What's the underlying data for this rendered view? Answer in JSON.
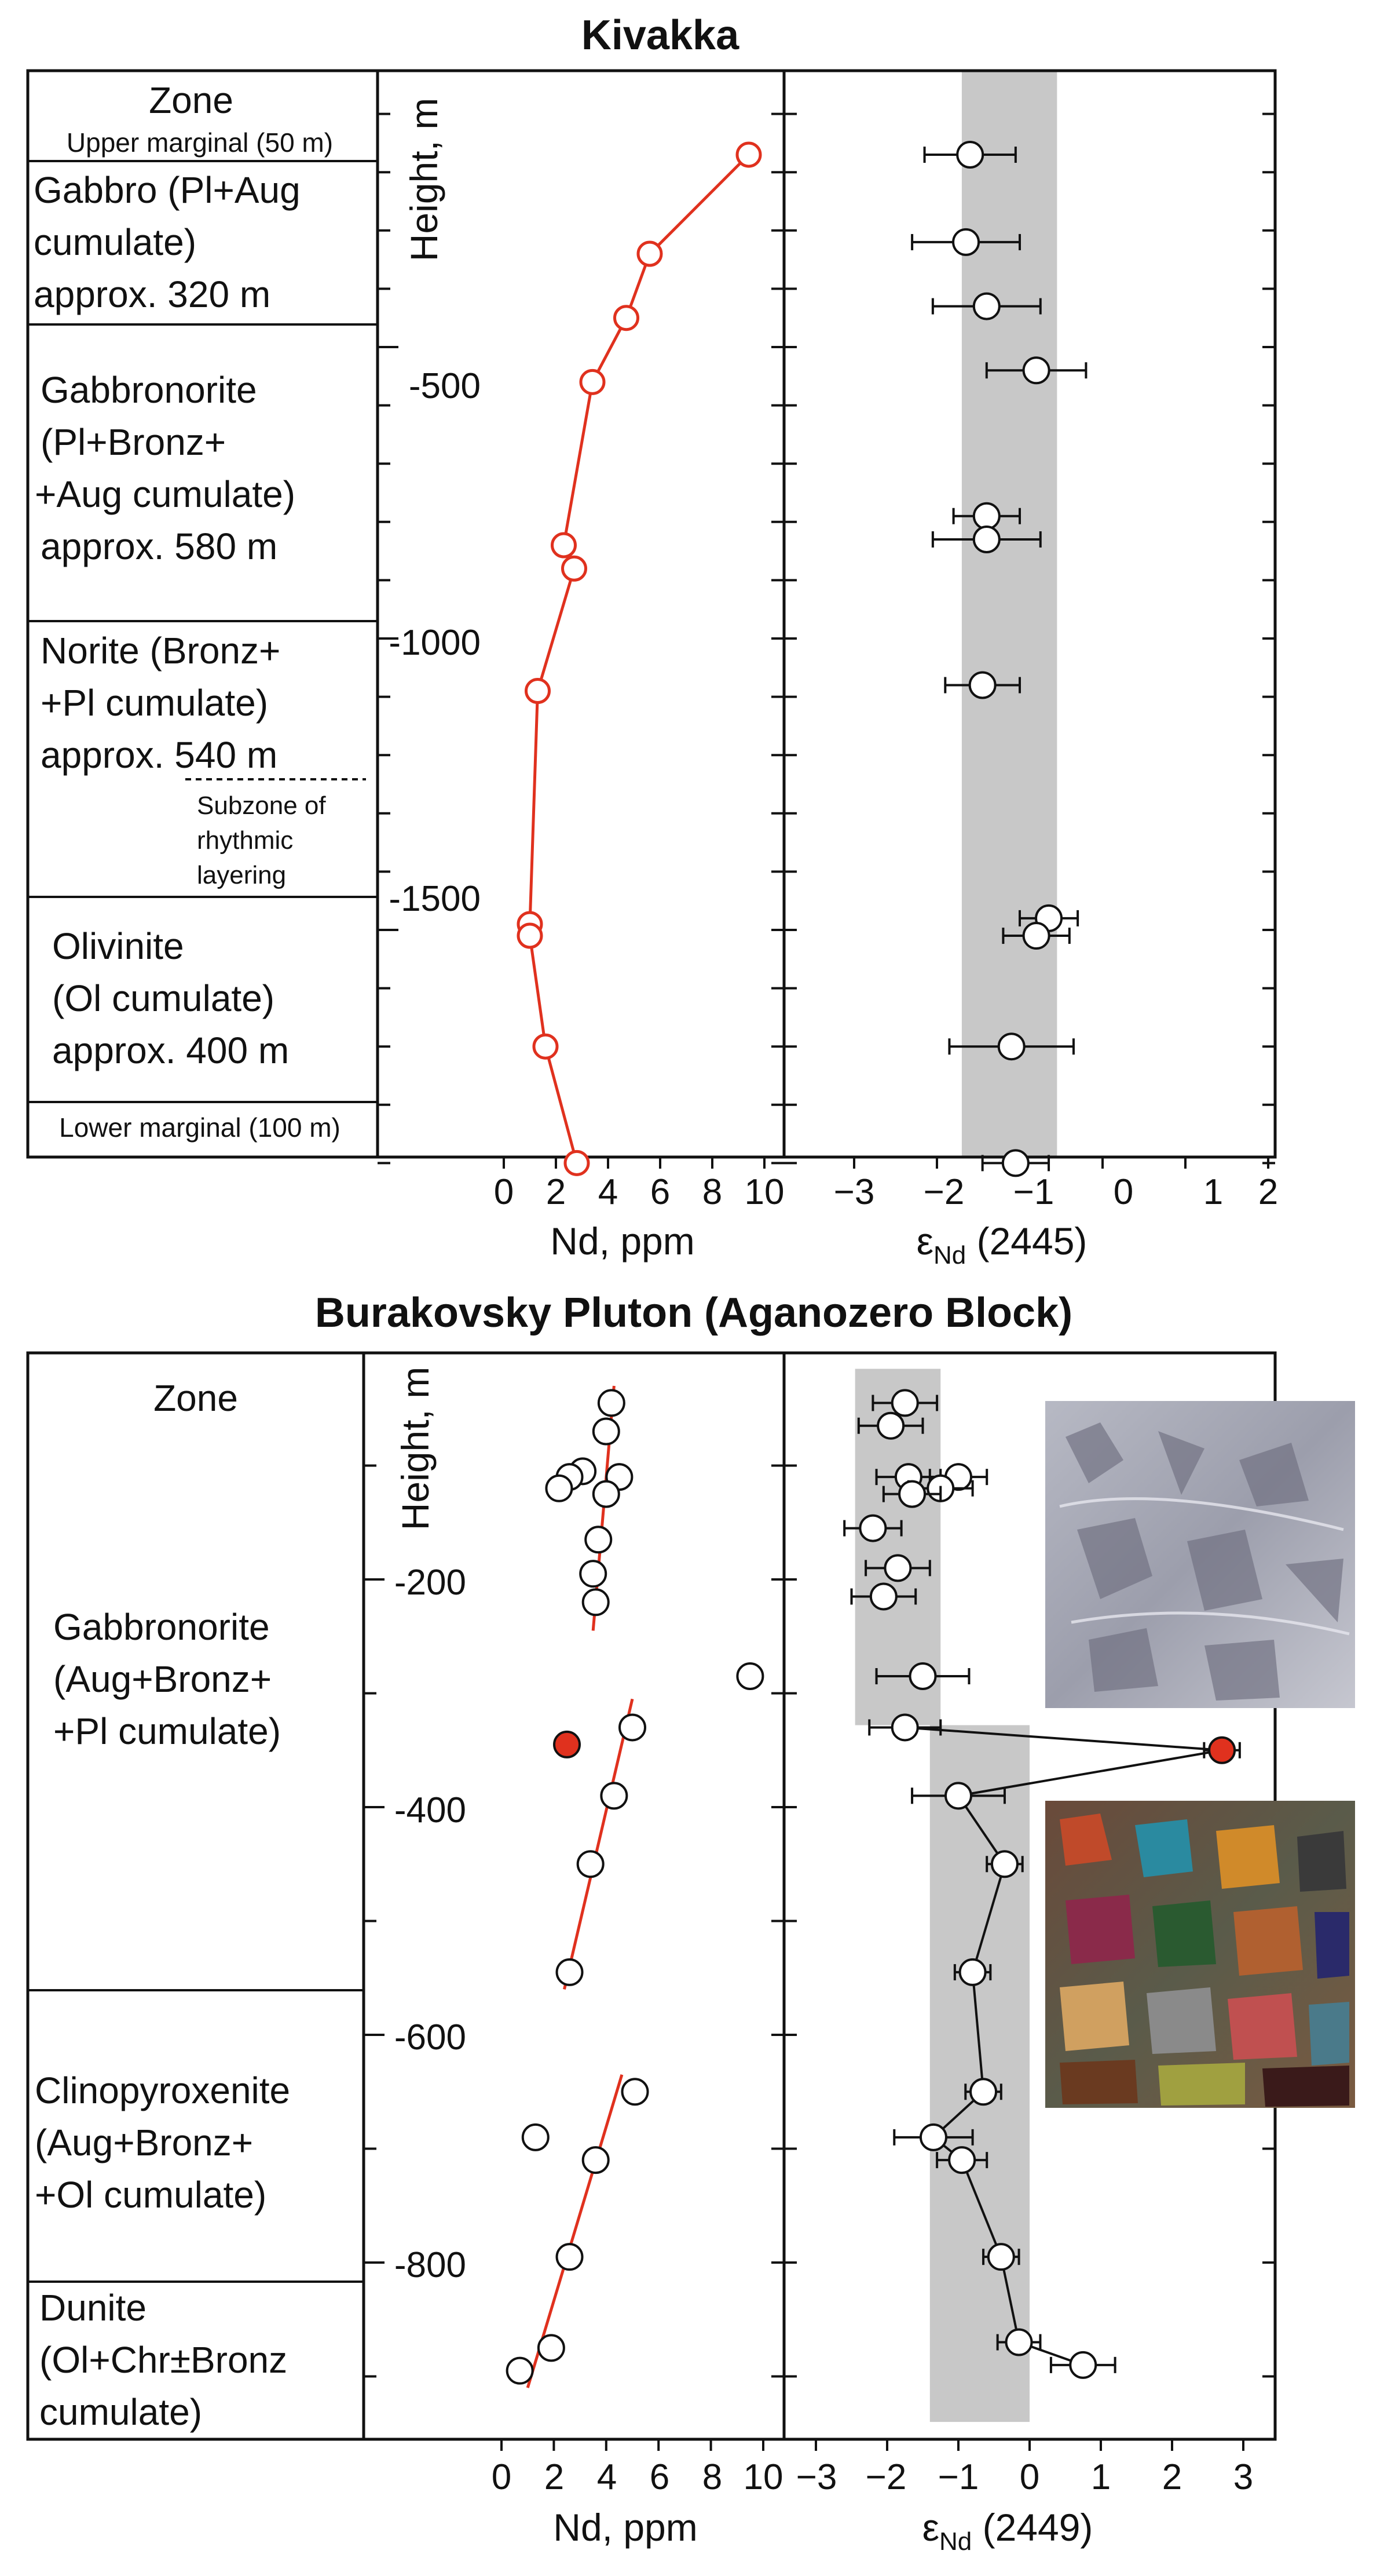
{
  "charts": [
    {
      "title": "Kivakka",
      "zone_header": "Zone",
      "y_axis_label": "Height, m",
      "zones": [
        {
          "lines": [
            "Upper marginal (50 m)"
          ]
        },
        {
          "lines": [
            "Gabbro (Pl+Aug",
            "cumulate)",
            "approx. 320 m"
          ]
        },
        {
          "lines": [
            "Gabbronorite",
            "(Pl+Bronz+",
            "+Aug cumulate)",
            "approx. 580 m"
          ]
        },
        {
          "lines": [
            "Norite (Bronz+",
            "+Pl cumulate)",
            "approx. 540 m"
          ]
        },
        {
          "lines": [
            "Olivinite",
            "(Ol cumulate)",
            "approx. 400 m"
          ]
        },
        {
          "lines": [
            "Lower marginal (100 m)"
          ]
        }
      ],
      "subzone_lines": [
        "Subzone of",
        "rhythmic",
        "layering"
      ],
      "y_ticks": [
        "-500",
        "-1000",
        "-1500"
      ],
      "nd_axis": {
        "label": "Nd, ppm",
        "ticks": [
          "0",
          "2",
          "4",
          "6",
          "8",
          "10"
        ]
      },
      "eps_axis": {
        "label_main": "ε",
        "label_sub": "Nd",
        "label_tail": " (2445)",
        "ticks": [
          "−3",
          "−2",
          "−1",
          "0",
          "1",
          "2"
        ]
      }
    },
    {
      "title": "Burakovsky Pluton (Aganozero Block)",
      "zone_header": "Zone",
      "y_axis_label": "Height, m",
      "zones": [
        {
          "lines": [
            "Gabbronorite",
            "(Aug+Bronz+",
            "+Pl cumulate)"
          ]
        },
        {
          "lines": [
            "Clinopyroxenite",
            "(Aug+Bronz+",
            "+Ol cumulate)"
          ]
        },
        {
          "lines": [
            "Dunite",
            "(Ol+Chr±Bronz",
            "cumulate)"
          ]
        }
      ],
      "y_ticks": [
        "-200",
        "-400",
        "-600",
        "-800"
      ],
      "nd_axis": {
        "label": "Nd, ppm",
        "ticks": [
          "0",
          "2",
          "4",
          "6",
          "8",
          "10"
        ]
      },
      "eps_axis": {
        "label_main": "ε",
        "label_sub": "Nd",
        "label_tail": " (2449)",
        "ticks": [
          "−3",
          "−2",
          "−1",
          "0",
          "1",
          "2",
          "3"
        ]
      }
    }
  ],
  "chart_data": [
    {
      "type": "scatter",
      "title": "Kivakka",
      "ylabel": "Height, m",
      "ylim": [
        -1950,
        -20
      ],
      "nd": {
        "xlabel": "Nd, ppm",
        "xlim": [
          0,
          10
        ],
        "connected": true,
        "points": [
          {
            "nd": 9.4,
            "h": -170
          },
          {
            "nd": 5.6,
            "h": -340
          },
          {
            "nd": 4.7,
            "h": -450
          },
          {
            "nd": 3.4,
            "h": -560
          },
          {
            "nd": 2.3,
            "h": -840
          },
          {
            "nd": 2.7,
            "h": -880
          },
          {
            "nd": 1.3,
            "h": -1090
          },
          {
            "nd": 1.0,
            "h": -1490
          },
          {
            "nd": 1.0,
            "h": -1510
          },
          {
            "nd": 1.6,
            "h": -1700
          },
          {
            "nd": 2.8,
            "h": -1900
          }
        ]
      },
      "eps": {
        "xlabel": "εNd (2445)",
        "xlim": [
          -3,
          2
        ],
        "band": [
          -1.7,
          -0.55
        ],
        "points": [
          {
            "e": -1.6,
            "h": -170,
            "err": 0.55
          },
          {
            "e": -1.65,
            "h": -320,
            "err": 0.65
          },
          {
            "e": -1.4,
            "h": -430,
            "err": 0.65
          },
          {
            "e": -0.8,
            "h": -540,
            "err": 0.6
          },
          {
            "e": -1.4,
            "h": -790,
            "err": 0.4
          },
          {
            "e": -1.4,
            "h": -830,
            "err": 0.65
          },
          {
            "e": -1.45,
            "h": -1080,
            "err": 0.45
          },
          {
            "e": -0.65,
            "h": -1480,
            "err": 0.35
          },
          {
            "e": -0.8,
            "h": -1510,
            "err": 0.4
          },
          {
            "e": -1.1,
            "h": -1700,
            "err": 0.75
          },
          {
            "e": -1.05,
            "h": -1900,
            "err": 0.4
          }
        ]
      }
    },
    {
      "type": "scatter",
      "title": "Burakovsky Pluton (Aganozero Block)",
      "ylabel": "Height, m",
      "ylim": [
        -940,
        -15
      ],
      "nd": {
        "xlabel": "Nd, ppm",
        "xlim": [
          0,
          10
        ],
        "points": [
          {
            "nd": 4.2,
            "h": -45,
            "fill": "white"
          },
          {
            "nd": 4.0,
            "h": -70,
            "fill": "white"
          },
          {
            "nd": 3.1,
            "h": -105,
            "fill": "white"
          },
          {
            "nd": 2.6,
            "h": -110,
            "fill": "white"
          },
          {
            "nd": 4.5,
            "h": -110,
            "fill": "white"
          },
          {
            "nd": 2.2,
            "h": -120,
            "fill": "white"
          },
          {
            "nd": 4.0,
            "h": -125,
            "fill": "white"
          },
          {
            "nd": 3.7,
            "h": -165,
            "fill": "white"
          },
          {
            "nd": 3.5,
            "h": -195,
            "fill": "white"
          },
          {
            "nd": 3.6,
            "h": -220,
            "fill": "white"
          },
          {
            "nd": 9.5,
            "h": -285,
            "fill": "white"
          },
          {
            "nd": 5.0,
            "h": -330,
            "fill": "white"
          },
          {
            "nd": 2.5,
            "h": -345,
            "fill": "red"
          },
          {
            "nd": 4.3,
            "h": -390,
            "fill": "white"
          },
          {
            "nd": 3.4,
            "h": -450,
            "fill": "white"
          },
          {
            "nd": 2.6,
            "h": -545,
            "fill": "white"
          },
          {
            "nd": 5.1,
            "h": -650,
            "fill": "white"
          },
          {
            "nd": 1.3,
            "h": -690,
            "fill": "white"
          },
          {
            "nd": 3.6,
            "h": -710,
            "fill": "white"
          },
          {
            "nd": 2.6,
            "h": -795,
            "fill": "white"
          },
          {
            "nd": 1.9,
            "h": -875,
            "fill": "white"
          },
          {
            "nd": 0.7,
            "h": -895,
            "fill": "white"
          }
        ],
        "trend_lines": [
          {
            "from": {
              "nd": 4.3,
              "h": -30
            },
            "to": {
              "nd": 3.5,
              "h": -245
            }
          },
          {
            "from": {
              "nd": 5.0,
              "h": -305
            },
            "to": {
              "nd": 2.4,
              "h": -560
            }
          },
          {
            "from": {
              "nd": 4.6,
              "h": -635
            },
            "to": {
              "nd": 1.0,
              "h": -910
            }
          }
        ]
      },
      "eps": {
        "xlabel": "εNd (2449)",
        "xlim": [
          -3.3,
          3.3
        ],
        "bands": [
          {
            "x": [
              -2.45,
              -1.25
            ],
            "h": [
              -15,
              -328
            ]
          },
          {
            "x": [
              -1.4,
              0.0
            ],
            "h": [
              -328,
              -940
            ]
          }
        ],
        "points": [
          {
            "e": -1.75,
            "h": -45,
            "err": 0.45,
            "fill": "white"
          },
          {
            "e": -1.95,
            "h": -65,
            "err": 0.45,
            "fill": "white"
          },
          {
            "e": -1.7,
            "h": -110,
            "err": 0.45,
            "fill": "white"
          },
          {
            "e": -1.0,
            "h": -110,
            "err": 0.4,
            "fill": "white"
          },
          {
            "e": -1.25,
            "h": -120,
            "err": 0.45,
            "fill": "white"
          },
          {
            "e": -1.65,
            "h": -125,
            "err": 0.4,
            "fill": "white"
          },
          {
            "e": -2.2,
            "h": -155,
            "err": 0.4,
            "fill": "white"
          },
          {
            "e": -1.85,
            "h": -190,
            "err": 0.45,
            "fill": "white"
          },
          {
            "e": -2.05,
            "h": -215,
            "err": 0.45,
            "fill": "white"
          },
          {
            "e": -1.5,
            "h": -285,
            "err": 0.65,
            "fill": "white"
          },
          {
            "e": -1.75,
            "h": -330,
            "err": 0.5,
            "fill": "white"
          },
          {
            "e": 2.7,
            "h": -350,
            "err": 0.25,
            "fill": "red"
          },
          {
            "e": -1.0,
            "h": -390,
            "err": 0.65,
            "fill": "white"
          },
          {
            "e": -0.35,
            "h": -450,
            "err": 0.25,
            "fill": "white"
          },
          {
            "e": -0.8,
            "h": -545,
            "err": 0.25,
            "fill": "white"
          },
          {
            "e": -0.65,
            "h": -650,
            "err": 0.25,
            "fill": "white"
          },
          {
            "e": -1.35,
            "h": -690,
            "err": 0.55,
            "fill": "white"
          },
          {
            "e": -0.95,
            "h": -710,
            "err": 0.35,
            "fill": "white"
          },
          {
            "e": -0.4,
            "h": -795,
            "err": 0.25,
            "fill": "white"
          },
          {
            "e": -0.15,
            "h": -870,
            "err": 0.3,
            "fill": "white"
          },
          {
            "e": 0.75,
            "h": -890,
            "err": 0.45,
            "fill": "white"
          }
        ],
        "connected_sequence": [
          {
            "e": -1.75,
            "h": -330
          },
          {
            "e": 2.7,
            "h": -350
          },
          {
            "e": -1.0,
            "h": -390
          },
          {
            "e": -0.35,
            "h": -450
          },
          {
            "e": -0.8,
            "h": -545
          },
          {
            "e": -0.65,
            "h": -650
          },
          {
            "e": -1.35,
            "h": -690
          },
          {
            "e": -0.95,
            "h": -710
          },
          {
            "e": -0.4,
            "h": -795
          },
          {
            "e": -0.15,
            "h": -870
          },
          {
            "e": 0.75,
            "h": -890
          }
        ]
      }
    }
  ]
}
